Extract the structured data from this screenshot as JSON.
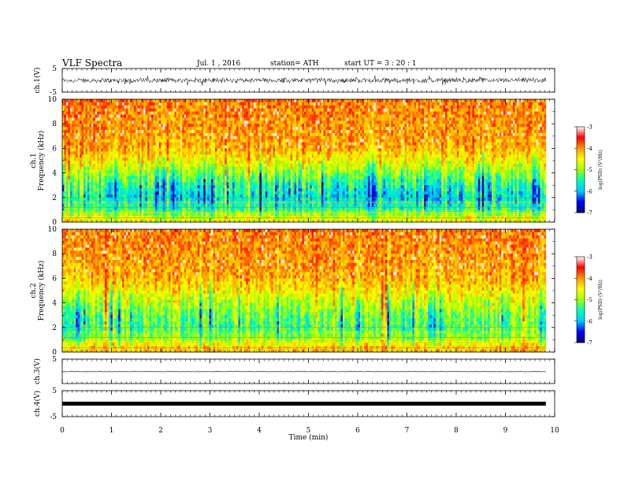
{
  "header": {
    "title": "VLF Spectra",
    "date": "Jul. 1 , 2016",
    "station": "station= ATH",
    "start": "start UT = 3 : 20 : 1"
  },
  "chart_data": {
    "type": "heatmap",
    "xlabel": "Time (min)",
    "xlim": [
      0,
      10
    ],
    "x_ticks": [
      "0",
      "1",
      "2",
      "3",
      "4",
      "5",
      "6",
      "7",
      "8",
      "9",
      "10"
    ],
    "panels": [
      {
        "id": "ch1-waveform",
        "type": "line",
        "ylabel": "ch.1(V)",
        "ylim": [
          -5,
          5
        ],
        "y_ticks": [
          "5",
          "-5"
        ],
        "amplitude_description": "noisy broadband signal about 0 V, excursions roughly ±1.5 V"
      },
      {
        "id": "ch1-spectrogram",
        "type": "heatmap",
        "ylabel": "ch.1\nFrequency (kHz)",
        "ylim": [
          0,
          10
        ],
        "y_ticks": [
          "0",
          "2",
          "4",
          "6",
          "8",
          "10"
        ],
        "colorbar": {
          "label": "log(PSD) (V²/Hz)",
          "range": [
            -7,
            -3
          ],
          "ticks": [
            "-3",
            "-4",
            "-5",
            "-6",
            "-7"
          ]
        },
        "profile_kHz_vs_logPSD": [
          [
            0.3,
            -4.6
          ],
          [
            1.0,
            -5.4
          ],
          [
            2.0,
            -5.8
          ],
          [
            3.0,
            -5.5
          ],
          [
            4.0,
            -5.0
          ],
          [
            5.0,
            -4.5
          ],
          [
            6.0,
            -4.1
          ],
          [
            8.0,
            -4.0
          ],
          [
            10.0,
            -3.9
          ]
        ]
      },
      {
        "id": "ch2-spectrogram",
        "type": "heatmap",
        "ylabel": "ch.2\nFrequency (kHz)",
        "ylim": [
          0,
          10
        ],
        "y_ticks": [
          "0",
          "2",
          "4",
          "6",
          "8",
          "10"
        ],
        "colorbar": {
          "label": "log(PSD) (V²/Hz)",
          "range": [
            -7,
            -3
          ],
          "ticks": [
            "-3",
            "-4",
            "-5",
            "-6",
            "-7"
          ]
        },
        "profile_kHz_vs_logPSD": [
          [
            0.3,
            -4.2
          ],
          [
            1.0,
            -4.9
          ],
          [
            2.0,
            -5.3
          ],
          [
            3.0,
            -5.1
          ],
          [
            4.0,
            -4.8
          ],
          [
            5.0,
            -4.4
          ],
          [
            6.0,
            -4.1
          ],
          [
            8.0,
            -4.0
          ],
          [
            10.0,
            -3.9
          ]
        ]
      },
      {
        "id": "ch3-waveform",
        "type": "line",
        "ylabel": "ch.3(V)",
        "ylim": [
          -5,
          5
        ],
        "y_ticks": [
          "5"
        ],
        "amplitude_description": "nearly flat at 0 V"
      },
      {
        "id": "ch4-waveform",
        "type": "line",
        "ylabel": "ch.4(V)",
        "ylim": [
          -5,
          5
        ],
        "y_ticks": [
          "5",
          "-5"
        ],
        "amplitude_description": "constant thick trace near 0 V"
      }
    ],
    "colors": {
      "scale": [
        "#000070",
        "#0000ff",
        "#00c8ff",
        "#00ffb4",
        "#a0ff00",
        "#ffff00",
        "#ff9600",
        "#ff0000",
        "#ffffff"
      ]
    }
  }
}
